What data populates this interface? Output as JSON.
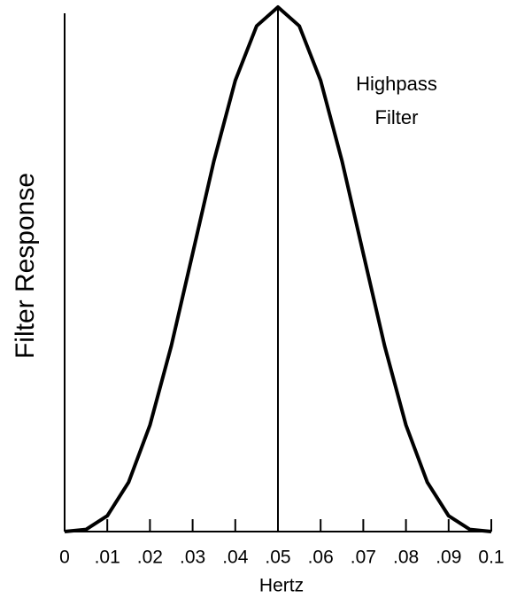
{
  "chart_data": {
    "type": "line",
    "ylabel": "Filter Response",
    "xlabel": "Hertz",
    "annotation": [
      "Highpass",
      "Filter"
    ],
    "x": [
      0,
      0.005,
      0.01,
      0.015,
      0.02,
      0.025,
      0.03,
      0.035,
      0.04,
      0.045,
      0.05,
      0.055,
      0.06,
      0.065,
      0.07,
      0.075,
      0.08,
      0.085,
      0.09,
      0.095,
      0.1
    ],
    "series": [
      {
        "color": "#000000",
        "values": [
          0,
          0.004,
          0.03,
          0.094,
          0.203,
          0.354,
          0.53,
          0.707,
          0.86,
          0.964,
          1,
          0.964,
          0.86,
          0.707,
          0.53,
          0.354,
          0.203,
          0.094,
          0.03,
          0.004,
          0
        ]
      }
    ],
    "vline_x": 0.05,
    "xlim": [
      0,
      0.1
    ],
    "ylim": [
      0,
      1
    ],
    "xticks": [
      0,
      {
        "value": 0.01,
        "label": ".01"
      },
      {
        "value": 0.02,
        "label": ".02"
      },
      {
        "value": 0.03,
        "label": ".03"
      },
      {
        "value": 0.04,
        "label": ".04"
      },
      {
        "value": 0.05,
        "label": ".05"
      },
      {
        "value": 0.06,
        "label": ".06"
      },
      {
        "value": 0.07,
        "label": ".07"
      },
      {
        "value": 0.08,
        "label": ".08"
      },
      {
        "value": 0.09,
        "label": ".09"
      },
      0.1
    ],
    "grid": false
  }
}
